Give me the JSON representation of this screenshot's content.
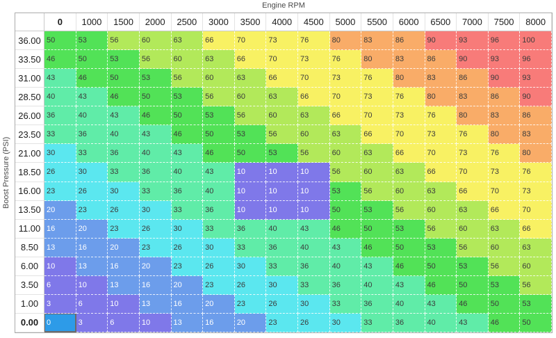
{
  "axes": {
    "x_title": "Engine RPM",
    "y_title": "Boost Pressure (PSI)"
  },
  "chart_data": {
    "type": "heatmap",
    "x_categories": [
      "0",
      "1000",
      "1500",
      "2000",
      "2500",
      "3000",
      "3500",
      "4000",
      "4500",
      "5000",
      "5500",
      "6000",
      "6500",
      "7000",
      "7500",
      "8000"
    ],
    "y_categories": [
      "36.00",
      "33.50",
      "31.00",
      "28.50",
      "26.00",
      "23.50",
      "21.00",
      "18.50",
      "16.00",
      "13.50",
      "11.00",
      "8.50",
      "6.00",
      "3.50",
      "1.00",
      "0.00"
    ],
    "values": [
      [
        50,
        53,
        56,
        60,
        63,
        66,
        70,
        73,
        76,
        80,
        83,
        86,
        90,
        93,
        96,
        100
      ],
      [
        46,
        50,
        53,
        56,
        60,
        63,
        66,
        70,
        73,
        76,
        80,
        83,
        86,
        90,
        93,
        96
      ],
      [
        43,
        46,
        50,
        53,
        56,
        60,
        63,
        66,
        70,
        73,
        76,
        80,
        83,
        86,
        90,
        93
      ],
      [
        40,
        43,
        46,
        50,
        53,
        56,
        60,
        63,
        66,
        70,
        73,
        76,
        80,
        83,
        86,
        90
      ],
      [
        36,
        40,
        43,
        46,
        50,
        53,
        56,
        60,
        63,
        66,
        70,
        73,
        76,
        80,
        83,
        86
      ],
      [
        33,
        36,
        40,
        43,
        46,
        50,
        53,
        56,
        60,
        63,
        66,
        70,
        73,
        76,
        80,
        83
      ],
      [
        30,
        33,
        36,
        40,
        43,
        46,
        50,
        53,
        56,
        60,
        63,
        66,
        70,
        73,
        76,
        80
      ],
      [
        26,
        30,
        33,
        36,
        40,
        43,
        10,
        10,
        10,
        56,
        60,
        63,
        66,
        70,
        73,
        76
      ],
      [
        23,
        26,
        30,
        33,
        36,
        40,
        10,
        10,
        10,
        53,
        56,
        60,
        63,
        66,
        70,
        73
      ],
      [
        20,
        23,
        26,
        30,
        33,
        36,
        10,
        10,
        10,
        50,
        53,
        56,
        60,
        63,
        66,
        70
      ],
      [
        16,
        20,
        23,
        26,
        30,
        33,
        36,
        40,
        43,
        46,
        50,
        53,
        56,
        60,
        63,
        66
      ],
      [
        13,
        16,
        20,
        23,
        26,
        30,
        33,
        36,
        40,
        43,
        46,
        50,
        53,
        56,
        60,
        63
      ],
      [
        10,
        13,
        16,
        20,
        23,
        26,
        30,
        33,
        36,
        40,
        43,
        46,
        50,
        53,
        56,
        60
      ],
      [
        6,
        10,
        13,
        16,
        20,
        23,
        26,
        30,
        33,
        36,
        40,
        43,
        46,
        50,
        53,
        56
      ],
      [
        3,
        6,
        10,
        13,
        16,
        20,
        23,
        26,
        30,
        33,
        36,
        40,
        43,
        46,
        50,
        53
      ],
      [
        0,
        3,
        6,
        10,
        13,
        16,
        20,
        23,
        26,
        30,
        33,
        36,
        40,
        43,
        46,
        50
      ]
    ],
    "selected": {
      "row": 15,
      "col": 0,
      "row_label": "0.00",
      "col_label": "0",
      "value": 0
    },
    "color_scale": {
      "text_color": "#3b3b3b",
      "white_text_color": "#ffffff",
      "selected_bg": "#2d9be8",
      "bands": [
        {
          "max": 12,
          "bg": "#7f78e9",
          "white_text": true
        },
        {
          "max": 22,
          "bg": "#6c9deb",
          "white_text": true
        },
        {
          "max": 32,
          "bg": "#5be7ef",
          "white_text": false
        },
        {
          "max": 45,
          "bg": "#60eca8",
          "white_text": false
        },
        {
          "max": 55,
          "bg": "#52e257",
          "white_text": false
        },
        {
          "max": 65,
          "bg": "#b2e95a",
          "white_text": false
        },
        {
          "max": 79,
          "bg": "#f8f163",
          "white_text": false
        },
        {
          "max": 89,
          "bg": "#f9ac68",
          "white_text": false
        },
        {
          "max": 100,
          "bg": "#f87b79",
          "white_text": false
        }
      ]
    }
  }
}
